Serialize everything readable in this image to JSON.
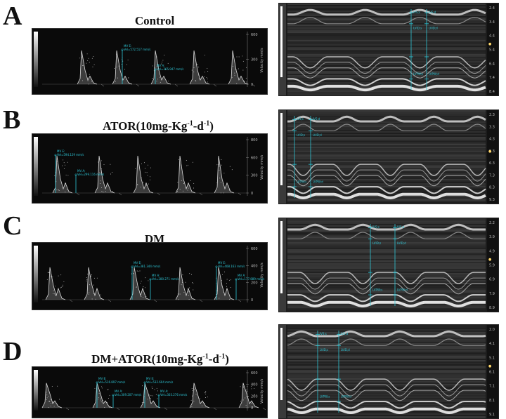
{
  "panels": [
    {
      "letter": "A",
      "title": "Control",
      "doppler": {
        "scale_top": "600",
        "ticks": [
          "600",
          "300",
          "0"
        ],
        "side": "Velocity mm/s",
        "mv_e": "MV E:",
        "mv_e_val": "Vel=572.517 mm/s",
        "mv_a": "MV A:",
        "mv_a_val": "Vel=365.947 mm/s"
      },
      "mmode": {
        "ticks": [
          "2.4",
          "3.4",
          "4.4",
          "5.4",
          "6.4",
          "7.4",
          "8.4"
        ],
        "labels": [
          "LVID;s",
          "LVID;d",
          "LVPW;s",
          "LVPW;d",
          "IVS;s",
          "IVS;d"
        ]
      }
    },
    {
      "letter": "B",
      "title": "ATOR(10mg-Kg",
      "title_sup": "-1",
      "title_mid": "-d",
      "title_sup2": "-1",
      "title_end": ")",
      "doppler": {
        "scale_top": "800",
        "ticks": [
          "800",
          "600",
          "300",
          "0"
        ],
        "side": "Velocity mm/s",
        "mv_e": "MV E:",
        "mv_e_val": "Vel=594.129 mm/s",
        "mv_a": "MV A:",
        "mv_a_val": "Vel=299.116 mm/s"
      },
      "mmode": {
        "ticks": [
          "2.3",
          "3.3",
          "4.3",
          "5.3",
          "6.3",
          "7.3",
          "8.3",
          "9.3"
        ],
        "labels": [
          "LVID;s",
          "LVID;d",
          "LVPW;s",
          "LVPW;d",
          "IVS;s",
          "IVS;d"
        ]
      }
    },
    {
      "letter": "C",
      "title": "DM",
      "doppler": {
        "scale_top": "792",
        "ticks": [
          "600",
          "400",
          "200",
          "0"
        ],
        "side": "Velocity mm/s",
        "mv_e": "MV E:",
        "mv_e_val": "Vel=381.344 mm/s",
        "mv_a": "MV A:",
        "mv_a_val": "Vel=280.271 mm/s",
        "mv_e2": "MV E:",
        "mv_e2_val": "Vel=408.163 mm/s",
        "mv_a2": "MV A:",
        "mv_a2_val": "Vel=177.889 mm/s"
      },
      "mmode": {
        "ticks": [
          "2.2",
          "3.9",
          "4.9",
          "5.9",
          "6.9",
          "7.9",
          "8.9"
        ],
        "labels": [
          "LVID;s",
          "LVID;d",
          "LVPW;s",
          "LVPW;d",
          "IVS;s",
          "IVS;d"
        ]
      }
    },
    {
      "letter": "D",
      "title": "DM+ATOR(10mg-Kg",
      "title_sup": "-1",
      "title_mid": "-d",
      "title_sup2": "-1",
      "title_end": ")",
      "doppler": {
        "scale_top": "792",
        "ticks": [
          "600",
          "400",
          "200",
          "0"
        ],
        "side": "Velocity mm/s",
        "mv_e": "MV E:",
        "mv_e_val": "Vel=516.897 mm/s",
        "mv_a": "MV A:",
        "mv_a_val": "Vel=309.207 mm/s",
        "mv_e2": "MV E:",
        "mv_e2_val": "Vel=532.604 mm/s",
        "mv_a2": "MV A:",
        "mv_a2_val": "Vel=303.276 mm/s"
      },
      "mmode": {
        "ticks": [
          "2.0",
          "4.1",
          "5.1",
          "6.1",
          "7.1",
          "8.1",
          "9.1"
        ],
        "labels": [
          "LVID;s",
          "LVID;d",
          "LVPW;s",
          "LVPW;d",
          "IVS;s",
          "IVS;d"
        ]
      }
    }
  ],
  "colors": {
    "measure": "#2ec6d6",
    "trace": "#d9d9d9",
    "background": "#0a0a0a"
  }
}
